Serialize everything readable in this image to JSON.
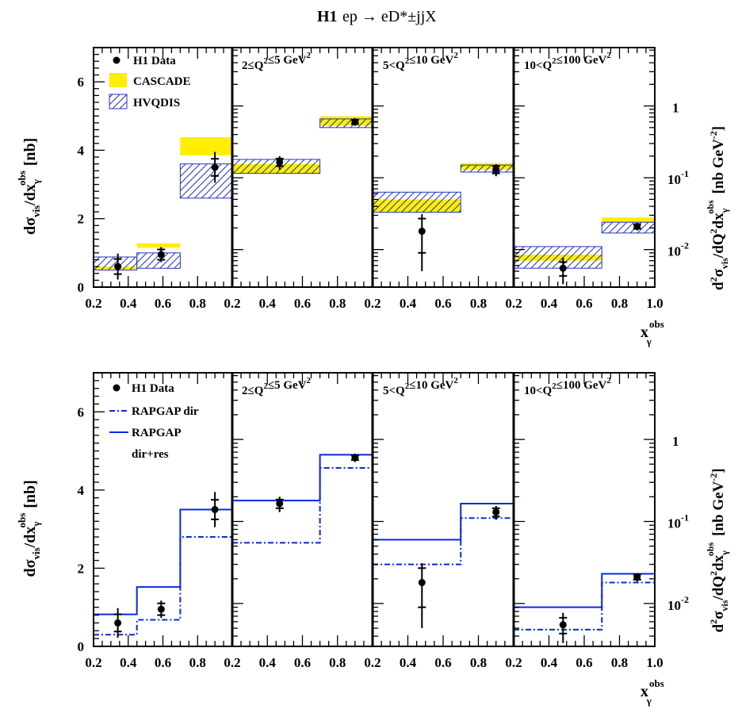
{
  "title": "H1",
  "process": "ep → eD*±jjX",
  "axis": {
    "xlabel": "x_γ^obs",
    "ylabel_left": "dσ_vis/dx_γ^obs [nb]",
    "ylabel_right": "d²σ_vis/dQ²dx_γ^obs [nb GeV⁻²]",
    "x_ticks_first": [
      "0.2",
      "0.4",
      "0.6",
      "0.8"
    ],
    "x_ticks_other": [
      "0.2",
      "0.4",
      "0.6",
      "0.8"
    ],
    "x_ticks_last": [
      "0.2",
      "0.4",
      "0.6",
      "0.8",
      "1.0"
    ],
    "y_ticks_left": [
      "0",
      "2",
      "4",
      "6"
    ],
    "y_ticks_right": [
      "10⁻²",
      "10⁻¹",
      "1"
    ]
  },
  "panels": [
    {
      "label": ""
    },
    {
      "label": "2≤Q²≤5 GeV²"
    },
    {
      "label": "5<Q²≤10 GeV²"
    },
    {
      "label": "10<Q²≤100 GeV²"
    }
  ],
  "legend_top": [
    "H1 Data",
    "CASCADE",
    "HVQDIS"
  ],
  "legend_bottom": [
    "H1 Data",
    "RAPGAP dir",
    "RAPGAP",
    "dir+res"
  ],
  "colors": {
    "cascade": "#ffee00",
    "hvqdis": "#2233bb",
    "rapgap": "#0a28e0",
    "data": "#000000"
  },
  "chart_data": {
    "type": "scatter",
    "x_bins": [
      [
        0.2,
        0.45
      ],
      [
        0.45,
        0.7
      ],
      [
        0.7,
        1.0
      ]
    ],
    "x_bins_q2": [
      [
        0.2,
        0.7
      ],
      [
        0.7,
        1.0
      ]
    ],
    "x_range": [
      0.2,
      1.0
    ],
    "ylim_left": [
      0,
      7
    ],
    "ylim_right_log": [
      0.003,
      6.5
    ],
    "panels": [
      {
        "scale": "linear",
        "data": [
          {
            "x": 0.34,
            "y": 0.6,
            "stat": 0.22,
            "tot": 0.38
          },
          {
            "x": 0.59,
            "y": 0.95,
            "stat": 0.15,
            "tot": 0.22
          },
          {
            "x": 0.9,
            "y": 3.5,
            "stat": 0.25,
            "tot": 0.45
          }
        ],
        "cascade": [
          [
            0.52,
            0.6
          ],
          [
            1.15,
            1.28
          ],
          [
            3.85,
            4.38
          ]
        ],
        "hvqdis": [
          [
            0.5,
            0.88
          ],
          [
            0.55,
            1.0
          ],
          [
            2.6,
            3.6
          ]
        ],
        "rapgap_dir": [
          0.3,
          0.68,
          2.8
        ],
        "rapgap_total": [
          0.82,
          1.52,
          3.5
        ]
      },
      {
        "scale": "log",
        "data": [
          {
            "x": 0.47,
            "y": 0.165,
            "stat": 0.02,
            "tot": 0.035
          },
          {
            "x": 0.9,
            "y": 0.6,
            "stat": 0.04,
            "tot": 0.07
          }
        ],
        "cascade": [
          [
            0.115,
            0.155
          ],
          [
            0.53,
            0.72
          ]
        ],
        "hvqdis": [
          [
            0.115,
            0.18
          ],
          [
            0.5,
            0.66
          ]
        ],
        "rapgap_dir": [
          0.055,
          0.45
        ],
        "rapgap_total": [
          0.18,
          0.65
        ]
      },
      {
        "scale": "log",
        "data": [
          {
            "x": 0.48,
            "y": 0.018,
            "stat": 0.009,
            "tot": 0.013
          },
          {
            "x": 0.9,
            "y": 0.13,
            "stat": 0.015,
            "tot": 0.025
          }
        ],
        "cascade": [
          [
            0.033,
            0.05
          ],
          [
            0.13,
            0.16
          ]
        ],
        "hvqdis": [
          [
            0.033,
            0.063
          ],
          [
            0.12,
            0.15
          ]
        ],
        "rapgap_dir": [
          0.03,
          0.11
        ],
        "rapgap_total": [
          0.06,
          0.165
        ]
      },
      {
        "scale": "log",
        "data": [
          {
            "x": 0.48,
            "y": 0.0055,
            "stat": 0.0012,
            "tot": 0.0022
          },
          {
            "x": 0.9,
            "y": 0.021,
            "stat": 0.0015,
            "tot": 0.0025
          }
        ],
        "cascade": [
          [
            0.007,
            0.0085
          ],
          [
            0.024,
            0.028
          ]
        ],
        "hvqdis": [
          [
            0.0055,
            0.011
          ],
          [
            0.017,
            0.024
          ]
        ],
        "rapgap_dir": [
          0.0048,
          0.018
        ],
        "rapgap_total": [
          0.009,
          0.023
        ]
      }
    ]
  }
}
